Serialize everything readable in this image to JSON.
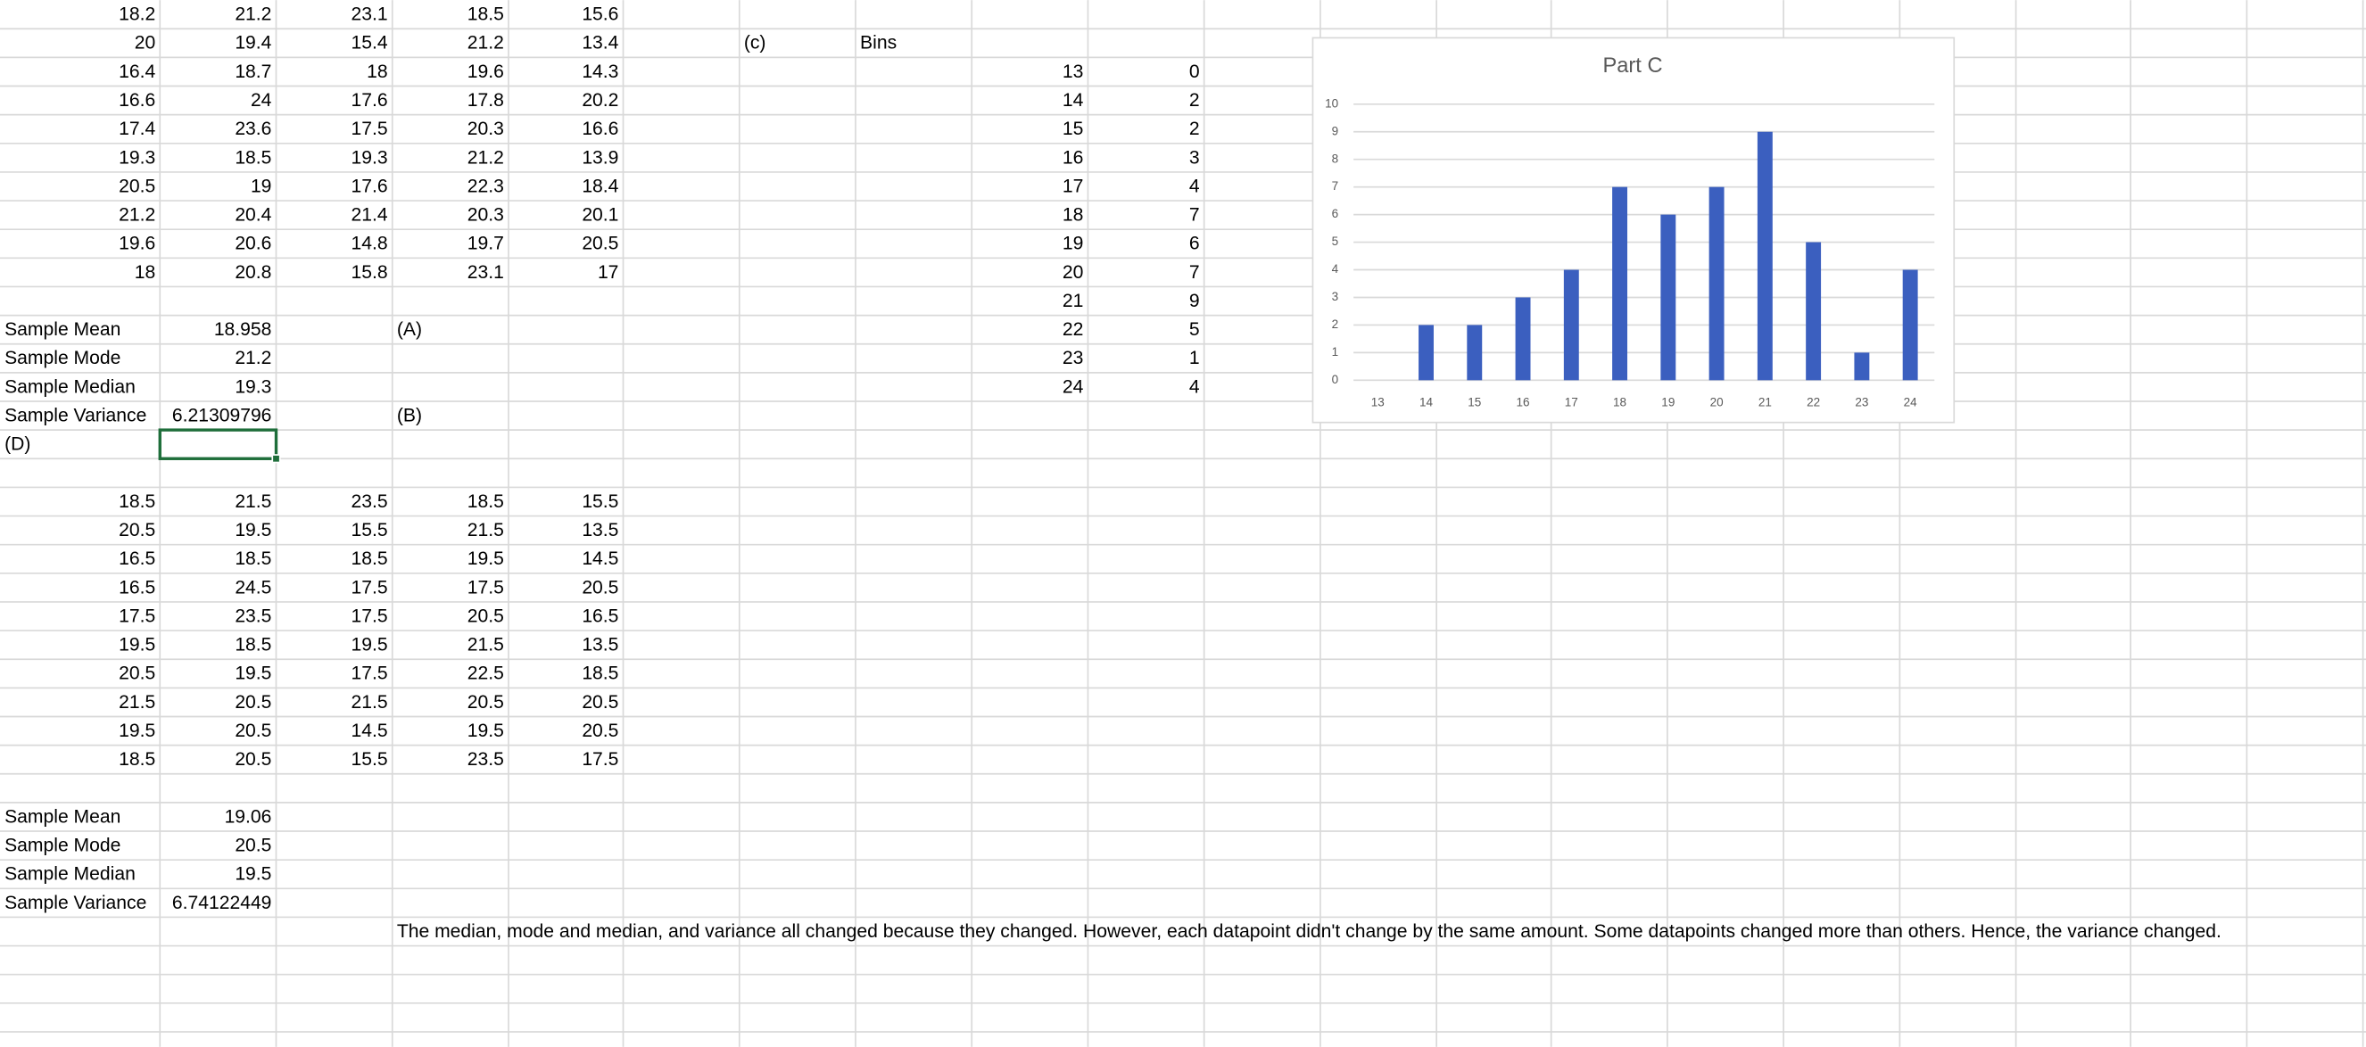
{
  "sheet": {
    "table_1": [
      [
        18.2,
        21.2,
        23.1,
        18.5,
        15.6
      ],
      [
        20,
        19.4,
        15.4,
        21.2,
        13.4
      ],
      [
        16.4,
        18.7,
        18,
        19.6,
        14.3
      ],
      [
        16.6,
        24,
        17.6,
        17.8,
        20.2
      ],
      [
        17.4,
        23.6,
        17.5,
        20.3,
        16.6
      ],
      [
        19.3,
        18.5,
        19.3,
        21.2,
        13.9
      ],
      [
        20.5,
        19,
        17.6,
        22.3,
        18.4
      ],
      [
        21.2,
        20.4,
        21.4,
        20.3,
        20.1
      ],
      [
        19.6,
        20.6,
        14.8,
        19.7,
        20.5
      ],
      [
        18,
        20.8,
        15.8,
        23.1,
        17
      ]
    ],
    "stats_1": [
      {
        "label": "Sample Mean",
        "value": 18.958
      },
      {
        "label": "Sample Mode",
        "value": 21.2
      },
      {
        "label": "Sample Median",
        "value": 19.3
      },
      {
        "label": "Sample Variance",
        "value": 6.21309796
      }
    ],
    "label_a": "(A)",
    "label_b": "(B)",
    "label_c": "(c)",
    "label_d": "(D)",
    "bins_header": "Bins",
    "bins": [
      [
        13,
        0
      ],
      [
        14,
        2
      ],
      [
        15,
        2
      ],
      [
        16,
        3
      ],
      [
        17,
        4
      ],
      [
        18,
        7
      ],
      [
        19,
        6
      ],
      [
        20,
        7
      ],
      [
        21,
        9
      ],
      [
        22,
        5
      ],
      [
        23,
        1
      ],
      [
        24,
        4
      ]
    ],
    "table_2": [
      [
        18.5,
        21.5,
        23.5,
        18.5,
        15.5
      ],
      [
        20.5,
        19.5,
        15.5,
        21.5,
        13.5
      ],
      [
        16.5,
        18.5,
        18.5,
        19.5,
        14.5
      ],
      [
        16.5,
        24.5,
        17.5,
        17.5,
        20.5
      ],
      [
        17.5,
        23.5,
        17.5,
        20.5,
        16.5
      ],
      [
        19.5,
        18.5,
        19.5,
        21.5,
        13.5
      ],
      [
        20.5,
        19.5,
        17.5,
        22.5,
        18.5
      ],
      [
        21.5,
        20.5,
        21.5,
        20.5,
        20.5
      ],
      [
        19.5,
        20.5,
        14.5,
        19.5,
        20.5
      ],
      [
        18.5,
        20.5,
        15.5,
        23.5,
        17.5
      ]
    ],
    "stats_2": [
      {
        "label": "Sample Mean",
        "value": 19.06
      },
      {
        "label": "Sample Mode",
        "value": 20.5
      },
      {
        "label": "Sample Median",
        "value": 19.5
      },
      {
        "label": "Sample Variance",
        "value": 6.74122449
      }
    ],
    "note": "The median, mode and median, and variance all changed because they changed. However, each datapoint didn't change by the same amount. Some datapoints changed more than others. Hence, the variance changed."
  },
  "chart_data": {
    "type": "bar",
    "title": "Part C",
    "categories": [
      "13",
      "14",
      "15",
      "16",
      "17",
      "18",
      "19",
      "20",
      "21",
      "22",
      "23",
      "24"
    ],
    "values": [
      0,
      2,
      2,
      3,
      4,
      7,
      6,
      7,
      9,
      5,
      1,
      4
    ],
    "color": "#3b5fbf",
    "ylim": [
      0,
      10
    ],
    "yticks": [
      0,
      1,
      2,
      3,
      4,
      5,
      6,
      7,
      8,
      9,
      10
    ],
    "grid": true
  }
}
